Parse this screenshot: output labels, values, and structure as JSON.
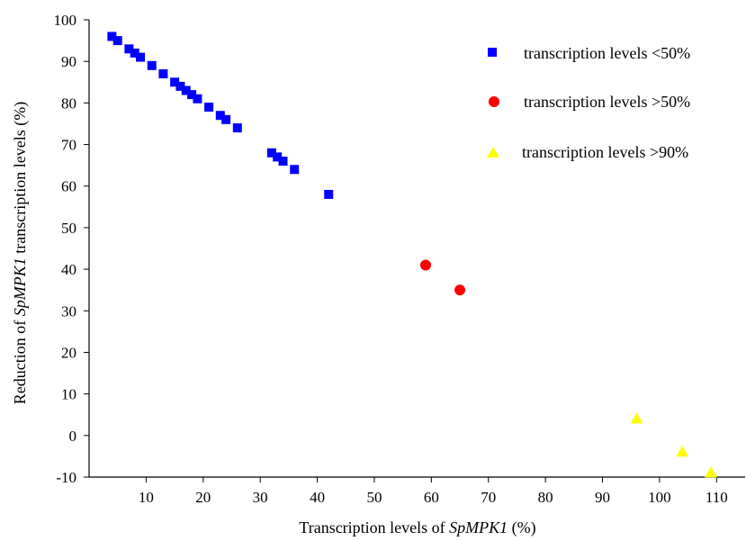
{
  "chart_data": {
    "type": "scatter",
    "xlabel_parts": [
      "Transcription levels of ",
      "SpMPK1",
      " (%)"
    ],
    "ylabel_parts": [
      "Reduction of ",
      "SpMPK1",
      " transcription levels (%)"
    ],
    "xlim": [
      0,
      115
    ],
    "ylim": [
      -10,
      100
    ],
    "xticks": [
      10,
      20,
      30,
      40,
      50,
      60,
      70,
      80,
      90,
      100,
      110
    ],
    "yticks": [
      -10,
      0,
      10,
      20,
      30,
      40,
      50,
      60,
      70,
      80,
      90,
      100
    ],
    "grid": false,
    "legend_position": "top-right",
    "series": [
      {
        "name": "transcription levels <50%",
        "marker": "square",
        "color": "#0000ff",
        "points": [
          [
            4,
            96
          ],
          [
            5,
            95
          ],
          [
            7,
            93
          ],
          [
            8,
            92
          ],
          [
            9,
            91
          ],
          [
            11,
            89
          ],
          [
            13,
            87
          ],
          [
            15,
            85
          ],
          [
            16,
            84
          ],
          [
            17,
            83
          ],
          [
            18,
            82
          ],
          [
            19,
            81
          ],
          [
            21,
            79
          ],
          [
            23,
            77
          ],
          [
            24,
            76
          ],
          [
            26,
            74
          ],
          [
            32,
            68
          ],
          [
            33,
            67
          ],
          [
            34,
            66
          ],
          [
            36,
            64
          ],
          [
            42,
            58
          ]
        ]
      },
      {
        "name": "transcription levels >50%",
        "marker": "circle",
        "color": "#ff0000",
        "points": [
          [
            59,
            41
          ],
          [
            65,
            35
          ]
        ]
      },
      {
        "name": "transcription levels >90%",
        "marker": "triangle",
        "color": "#ffff00",
        "points": [
          [
            96,
            4
          ],
          [
            104,
            -4
          ],
          [
            109,
            -9
          ]
        ]
      }
    ]
  }
}
